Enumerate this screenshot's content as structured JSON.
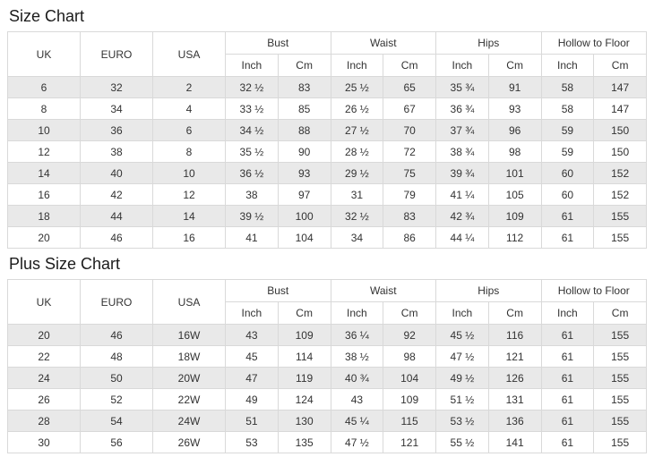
{
  "page": {
    "background": "#ffffff",
    "colors": {
      "stripe_row": "#e9e9e9",
      "border": "#d9d9d9",
      "cell_text": "#333333",
      "title_text": "#1b1b1b"
    }
  },
  "chart_data": [
    {
      "type": "table",
      "title": "Size Chart",
      "header": {
        "simple_columns": [
          "UK",
          "EURO",
          "USA"
        ],
        "group_columns": [
          {
            "label": "Bust",
            "sub": [
              "Inch",
              "Cm"
            ]
          },
          {
            "label": "Waist",
            "sub": [
              "Inch",
              "Cm"
            ]
          },
          {
            "label": "Hips",
            "sub": [
              "Inch",
              "Cm"
            ]
          },
          {
            "label": "Hollow to Floor",
            "sub": [
              "Inch",
              "Cm"
            ]
          }
        ]
      },
      "rows": [
        [
          "6",
          "32",
          "2",
          "32 ½",
          "83",
          "25 ½",
          "65",
          "35 ¾",
          "91",
          "58",
          "147"
        ],
        [
          "8",
          "34",
          "4",
          "33 ½",
          "85",
          "26 ½",
          "67",
          "36 ¾",
          "93",
          "58",
          "147"
        ],
        [
          "10",
          "36",
          "6",
          "34 ½",
          "88",
          "27 ½",
          "70",
          "37 ¾",
          "96",
          "59",
          "150"
        ],
        [
          "12",
          "38",
          "8",
          "35 ½",
          "90",
          "28 ½",
          "72",
          "38 ¾",
          "98",
          "59",
          "150"
        ],
        [
          "14",
          "40",
          "10",
          "36 ½",
          "93",
          "29 ½",
          "75",
          "39 ¾",
          "101",
          "60",
          "152"
        ],
        [
          "16",
          "42",
          "12",
          "38",
          "97",
          "31",
          "79",
          "41 ¼",
          "105",
          "60",
          "152"
        ],
        [
          "18",
          "44",
          "14",
          "39 ½",
          "100",
          "32 ½",
          "83",
          "42 ¾",
          "109",
          "61",
          "155"
        ],
        [
          "20",
          "46",
          "16",
          "41",
          "104",
          "34",
          "86",
          "44 ¼",
          "112",
          "61",
          "155"
        ]
      ]
    },
    {
      "type": "table",
      "title": "Plus Size Chart",
      "header": {
        "simple_columns": [
          "UK",
          "EURO",
          "USA"
        ],
        "group_columns": [
          {
            "label": "Bust",
            "sub": [
              "Inch",
              "Cm"
            ]
          },
          {
            "label": "Waist",
            "sub": [
              "Inch",
              "Cm"
            ]
          },
          {
            "label": "Hips",
            "sub": [
              "Inch",
              "Cm"
            ]
          },
          {
            "label": "Hollow to Floor",
            "sub": [
              "Inch",
              "Cm"
            ]
          }
        ]
      },
      "rows": [
        [
          "20",
          "46",
          "16W",
          "43",
          "109",
          "36 ¼",
          "92",
          "45 ½",
          "116",
          "61",
          "155"
        ],
        [
          "22",
          "48",
          "18W",
          "45",
          "114",
          "38 ½",
          "98",
          "47 ½",
          "121",
          "61",
          "155"
        ],
        [
          "24",
          "50",
          "20W",
          "47",
          "119",
          "40 ¾",
          "104",
          "49 ½",
          "126",
          "61",
          "155"
        ],
        [
          "26",
          "52",
          "22W",
          "49",
          "124",
          "43",
          "109",
          "51 ½",
          "131",
          "61",
          "155"
        ],
        [
          "28",
          "54",
          "24W",
          "51",
          "130",
          "45 ¼",
          "115",
          "53 ½",
          "136",
          "61",
          "155"
        ],
        [
          "30",
          "56",
          "26W",
          "53",
          "135",
          "47 ½",
          "121",
          "55 ½",
          "141",
          "61",
          "155"
        ]
      ]
    }
  ]
}
